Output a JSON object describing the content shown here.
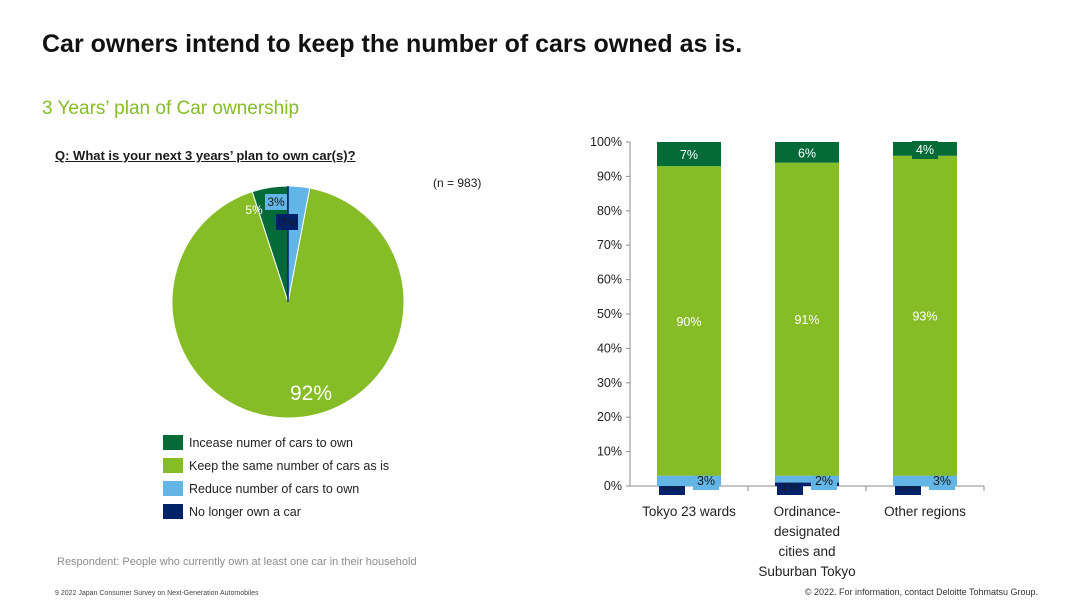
{
  "header": {
    "title": "Car owners intend to keep the number of cars owned as is.",
    "subtitle": "3 Years’ plan of Car ownership"
  },
  "question": "Q: What is your next 3 years’ plan to own car(s)?",
  "sample_size": "(n = 983)",
  "respondent_note": "Respondent: People who currently own at least one car in their household",
  "footer": {
    "left": "9   2022 Japan Consumer Survey on Next-Generation Automobiles",
    "right": "© 2022. For information, contact Deloitte Tohmatsu Group."
  },
  "colors": {
    "increase": "#046a38",
    "keep": "#86bc25",
    "reduce": "#62b5e5",
    "no_longer": "#012169"
  },
  "legend": [
    {
      "key": "increase",
      "label": "Incease numer of cars to own"
    },
    {
      "key": "keep",
      "label": "Keep the same number of cars as is"
    },
    {
      "key": "reduce",
      "label": "Reduce number of cars to own"
    },
    {
      "key": "no_longer",
      "label": "No longer own a car"
    }
  ],
  "chart_data": [
    {
      "type": "pie",
      "labels": [
        "Incease numer of cars to own",
        "Keep the same number of cars as is",
        "Reduce number of cars to own",
        "No longer own a car"
      ],
      "values": [
        5,
        92,
        3,
        0
      ],
      "data_labels": [
        "5%",
        "92%",
        "3%",
        "0%"
      ]
    },
    {
      "type": "bar",
      "stacked": true,
      "categories": [
        "Tokyo 23 wards",
        "Ordinance-designated cities and Suburban Tokyo",
        "Other regions"
      ],
      "category_lines": [
        [
          "Tokyo 23 wards"
        ],
        [
          "Ordinance-",
          "designated",
          "cities and",
          "Suburban Tokyo"
        ],
        [
          "Other regions"
        ]
      ],
      "series": [
        {
          "key": "no_longer",
          "name": "No longer own a car",
          "values": [
            0,
            1,
            0
          ],
          "labels": [
            "0%",
            "1%",
            "0%"
          ]
        },
        {
          "key": "reduce",
          "name": "Reduce number of cars to own",
          "values": [
            3,
            2,
            3
          ],
          "labels": [
            "3%",
            "2%",
            "3%"
          ]
        },
        {
          "key": "keep",
          "name": "Keep the same number of cars as is",
          "values": [
            90,
            91,
            93
          ],
          "labels": [
            "90%",
            "91%",
            "93%"
          ]
        },
        {
          "key": "increase",
          "name": "Incease numer of cars to own",
          "values": [
            7,
            6,
            4
          ],
          "labels": [
            "7%",
            "6%",
            "4%"
          ]
        }
      ],
      "ylim": [
        0,
        100
      ],
      "yticks": [
        "0%",
        "10%",
        "20%",
        "30%",
        "40%",
        "50%",
        "60%",
        "70%",
        "80%",
        "90%",
        "100%"
      ],
      "grid": false
    }
  ]
}
